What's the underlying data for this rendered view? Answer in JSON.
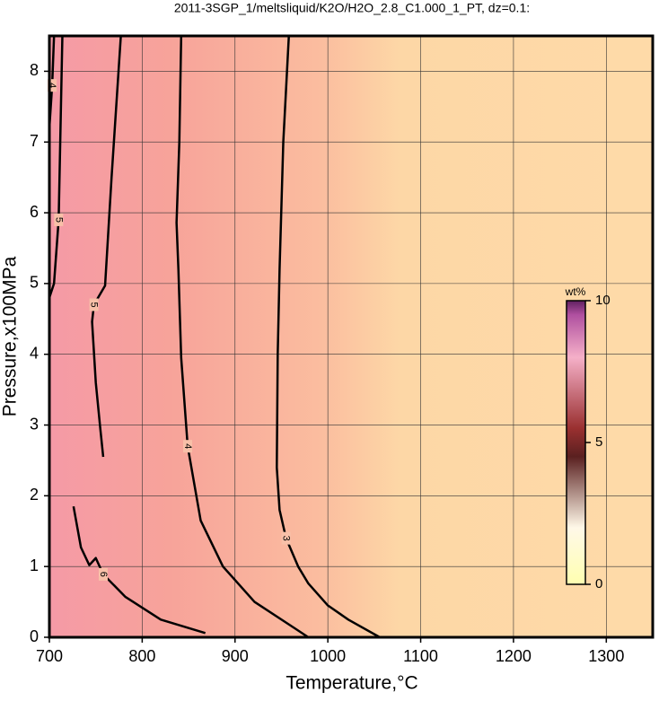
{
  "chart_data": {
    "type": "contour",
    "title": "2011-3SGP_1/meltsliquid/K2O/H2O_2.8_C1.000_1_PT, dz=0.1:",
    "x_label": "Temperature,°C",
    "y_label": "Pressure,x100MPa",
    "xlim": [
      700,
      1350
    ],
    "ylim": [
      0,
      8.5
    ],
    "xticks": [
      700,
      800,
      900,
      1000,
      1100,
      1200,
      1300
    ],
    "yticks": [
      0,
      1,
      2,
      3,
      4,
      5,
      6,
      7,
      8
    ],
    "grid": true,
    "contours": [
      {
        "level": 3,
        "x": [
          958,
          952,
          948,
          946,
          945,
          948,
          955,
          968,
          979,
          1000,
          1022,
          1056
        ],
        "y": [
          8.5,
          7,
          5.2,
          4,
          2.4,
          1.8,
          1.4,
          1,
          0.76,
          0.45,
          0.25,
          0
        ]
      },
      {
        "level": 4,
        "x": [
          842,
          840,
          837,
          839,
          842,
          849,
          863,
          887,
          921,
          964,
          979
        ],
        "y": [
          8.5,
          7,
          5.86,
          5.2,
          3.95,
          2.7,
          1.65,
          1,
          0.5,
          0.13,
          0
        ]
      },
      {
        "level": 5,
        "x": [
          777,
          772,
          767,
          760,
          748,
          746,
          750,
          755,
          758
        ],
        "y": [
          8.5,
          7.5,
          6.5,
          4.97,
          4.7,
          4.46,
          3.6,
          2.93,
          2.55
        ]
      },
      {
        "level": 6,
        "x": [
          726,
          734,
          743,
          750,
          758,
          782,
          820,
          868
        ],
        "y": [
          1.85,
          1.27,
          1.02,
          1.12,
          0.89,
          0.57,
          0.25,
          0.06
        ]
      },
      {
        "level": 5,
        "x": [
          714,
          712,
          710,
          705,
          700
        ],
        "y": [
          8.5,
          7.2,
          5.9,
          5.0,
          4.8
        ]
      },
      {
        "level": 4,
        "x": [
          705,
          703,
          700
        ],
        "y": [
          8.5,
          7.8,
          7.2
        ]
      }
    ],
    "colorbar": {
      "label": "wt%",
      "lim": [
        0,
        10
      ],
      "ticks": [
        0,
        5,
        10
      ]
    }
  }
}
